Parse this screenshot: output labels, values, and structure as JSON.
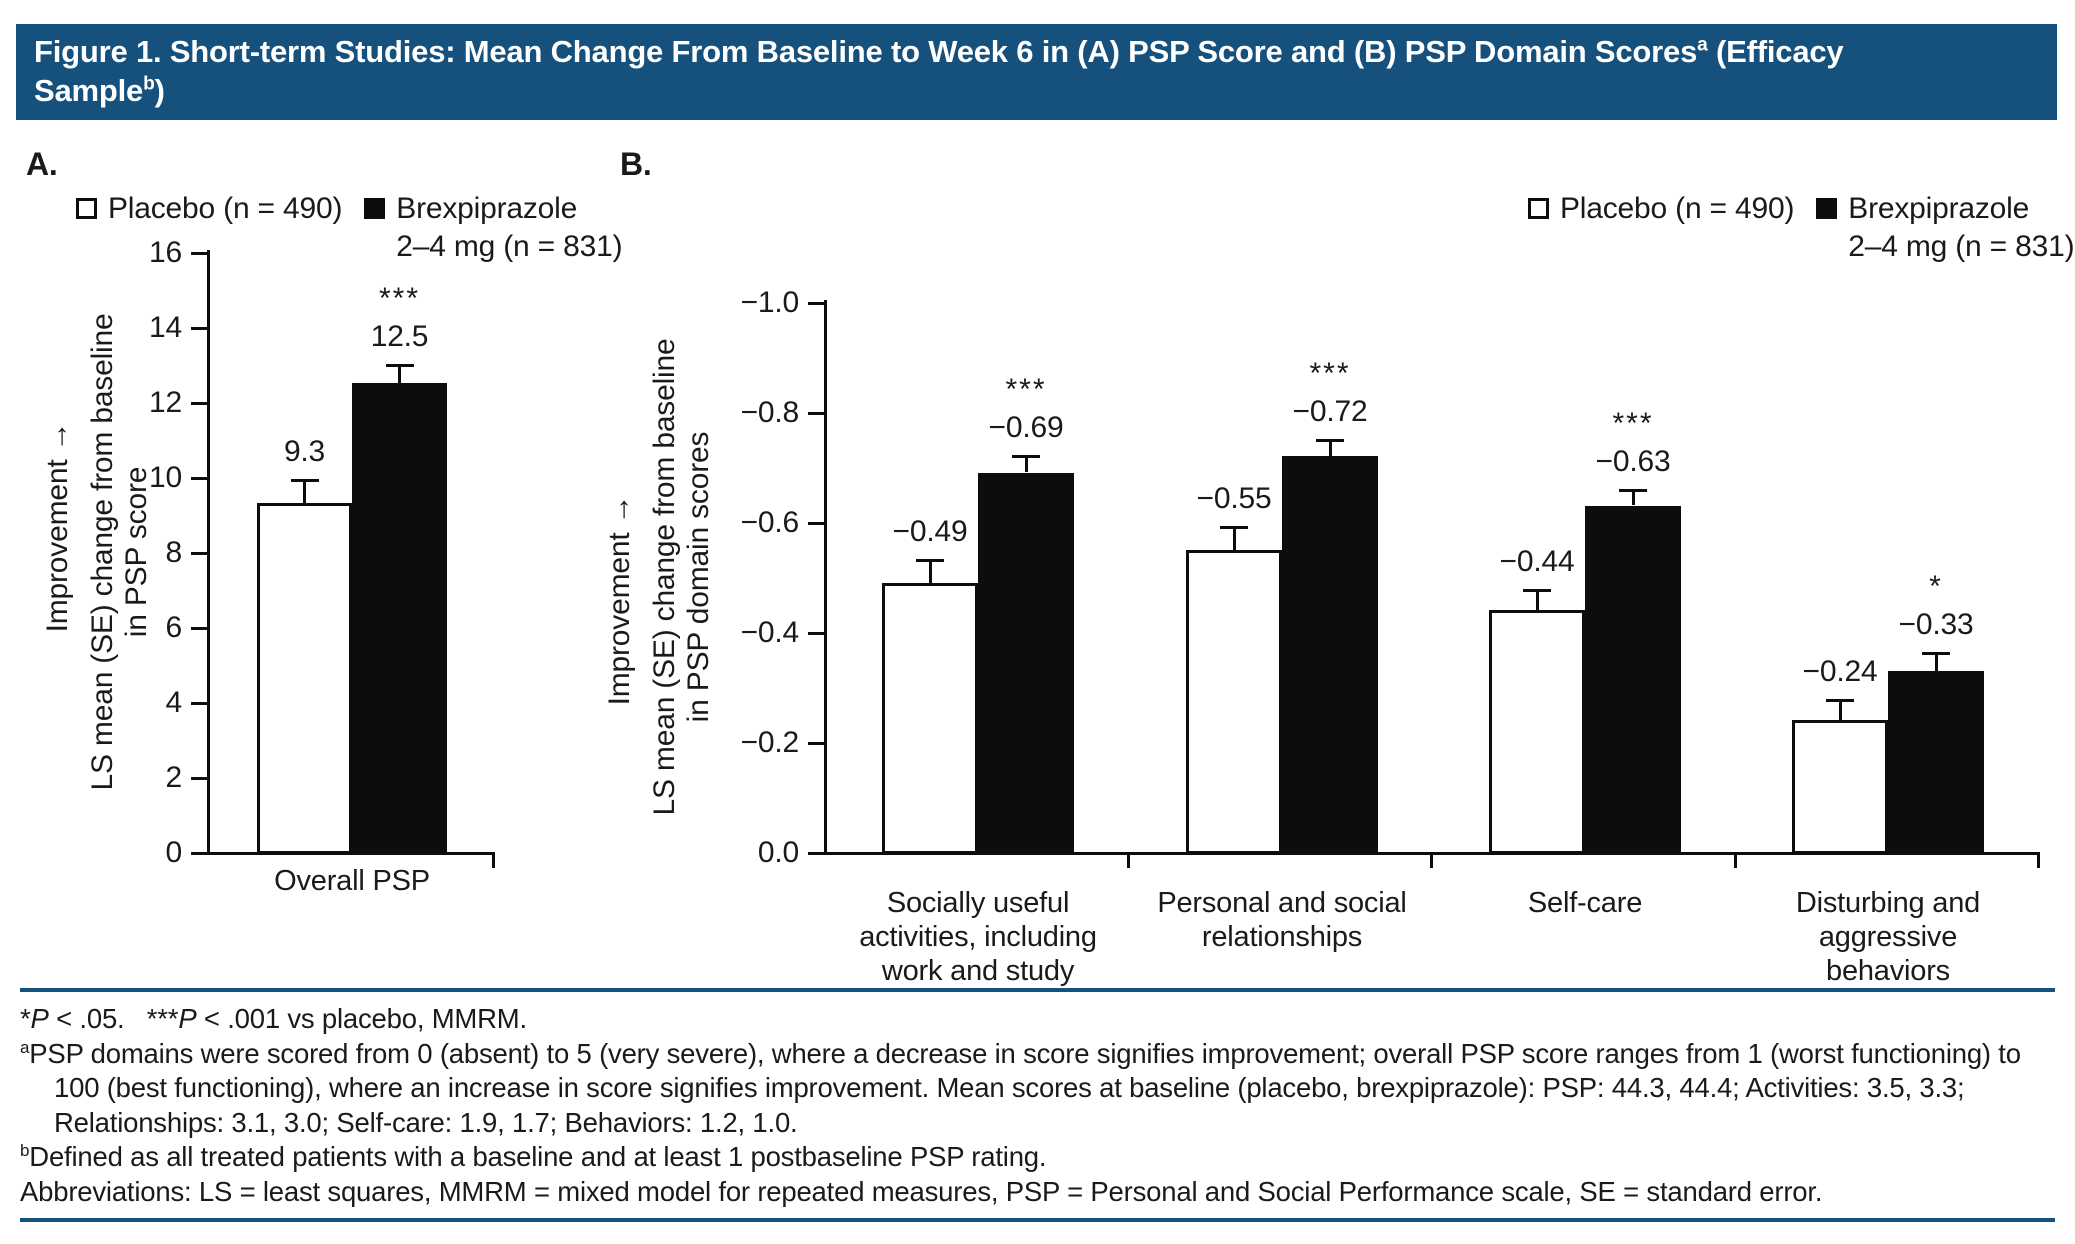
{
  "title": {
    "segments": [
      {
        "text": "Figure 1. Short-term Studies: Mean Change From Baseline to Week 6 in (A) PSP Score and (B) PSP Domain Scores"
      },
      {
        "text": "a",
        "sup": true
      },
      {
        "text": " (Efficacy"
      },
      {
        "br": true
      },
      {
        "text": "Sample"
      },
      {
        "text": "b",
        "sup": true
      },
      {
        "text": ")"
      }
    ]
  },
  "colors": {
    "header_bg": "#15517c",
    "rule": "#15517c",
    "bar_placebo_fill": "#ffffff",
    "bar_brexpiprazole_fill": "#0d0d0d",
    "axis": "#0d0d0d",
    "text": "#1a1a1a"
  },
  "legend": {
    "placebo": "Placebo (n = 490)",
    "brexpiprazole_line1": "Brexpiprazole",
    "brexpiprazole_line2": "2–4 mg (n = 831)"
  },
  "chart_data": [
    {
      "type": "bar",
      "panel_label": "A.",
      "ylabel_improvement": "Improvement →",
      "ylabel_line1": "LS mean (SE) change from baseline",
      "ylabel_line2": "in PSP score",
      "ylim": [
        0,
        16
      ],
      "grid": false,
      "legend_position": "top-left",
      "yticks": [
        {
          "label": "0",
          "value": 0
        },
        {
          "label": "2",
          "value": 2
        },
        {
          "label": "4",
          "value": 4
        },
        {
          "label": "6",
          "value": 6
        },
        {
          "label": "8",
          "value": 8
        },
        {
          "label": "10",
          "value": 10
        },
        {
          "label": "12",
          "value": 12
        },
        {
          "label": "14",
          "value": 14
        },
        {
          "label": "16",
          "value": 16
        }
      ],
      "categories": [
        [
          "Overall PSP"
        ]
      ],
      "series": [
        {
          "name": "Placebo (n = 490)",
          "fill": "#ffffff",
          "values": [
            9.3
          ],
          "se": [
            0.6
          ],
          "labels": [
            "9.3"
          ],
          "sig": [
            ""
          ]
        },
        {
          "name": "Brexpiprazole 2–4 mg (n = 831)",
          "fill": "#0d0d0d",
          "values": [
            12.5
          ],
          "se": [
            0.45
          ],
          "labels": [
            "12.5"
          ],
          "sig": [
            "***"
          ]
        }
      ]
    },
    {
      "type": "bar",
      "panel_label": "B.",
      "ylabel_improvement": "Improvement →",
      "ylabel_line1": "LS mean (SE) change from baseline",
      "ylabel_line2": "in PSP domain scores",
      "ylim": [
        0,
        -1.0
      ],
      "grid": false,
      "legend_position": "top-right",
      "yticks": [
        {
          "label": "−1.0",
          "value": 1.0
        },
        {
          "label": "−0.8",
          "value": 0.8
        },
        {
          "label": "−0.6",
          "value": 0.6
        },
        {
          "label": "−0.4",
          "value": 0.4
        },
        {
          "label": "−0.2",
          "value": 0.2
        },
        {
          "label": "0.0",
          "value": 0
        }
      ],
      "categories": [
        [
          "Socially useful",
          "activities, including",
          "work and study"
        ],
        [
          "Personal and social",
          "relationships"
        ],
        [
          "Self-care"
        ],
        [
          "Disturbing and",
          "aggressive",
          "behaviors"
        ]
      ],
      "series": [
        {
          "name": "Placebo (n = 490)",
          "fill": "#ffffff",
          "values": [
            -0.49,
            -0.55,
            -0.44,
            -0.24
          ],
          "se": [
            0.04,
            0.04,
            0.035,
            0.035
          ],
          "labels": [
            "−0.49",
            "−0.55",
            "−0.44",
            "−0.24"
          ],
          "sig": [
            "",
            "",
            "",
            ""
          ]
        },
        {
          "name": "Brexpiprazole 2–4 mg (n = 831)",
          "fill": "#0d0d0d",
          "values": [
            -0.69,
            -0.72,
            -0.63,
            -0.33
          ],
          "se": [
            0.028,
            0.028,
            0.026,
            0.03
          ],
          "labels": [
            "−0.69",
            "−0.72",
            "−0.63",
            "−0.33"
          ],
          "sig": [
            "***",
            "***",
            "***",
            "*"
          ]
        }
      ]
    }
  ],
  "footnotes": [
    {
      "hang": false,
      "segments": [
        {
          "text": "*"
        },
        {
          "text": "P",
          "italic": true
        },
        {
          "text": " < .05.   ***"
        },
        {
          "text": "P",
          "italic": true
        },
        {
          "text": " < .001 vs placebo, MMRM."
        }
      ]
    },
    {
      "hang": true,
      "segments": [
        {
          "text": "a",
          "sup": true
        },
        {
          "text": "PSP domains were scored from 0 (absent) to 5 (very severe), where a decrease in score signifies improvement; overall PSP score ranges from 1 (worst functioning) to 100 (best functioning), where an increase in score signifies improvement. Mean scores at baseline (placebo, brexpiprazole): PSP: 44.3, 44.4; Activities: 3.5, 3.3; Relationships: 3.1, 3.0; Self-care: 1.9, 1.7; Behaviors: 1.2, 1.0."
        }
      ]
    },
    {
      "hang": true,
      "segments": [
        {
          "text": "b",
          "sup": true
        },
        {
          "text": "Defined as all treated patients with a baseline and at least 1 postbaseline PSP rating."
        }
      ]
    },
    {
      "hang": false,
      "segments": [
        {
          "text": "Abbreviations: LS = least squares, MMRM = mixed model for repeated measures, PSP = Personal and Social Performance scale, SE = standard error."
        }
      ]
    }
  ]
}
